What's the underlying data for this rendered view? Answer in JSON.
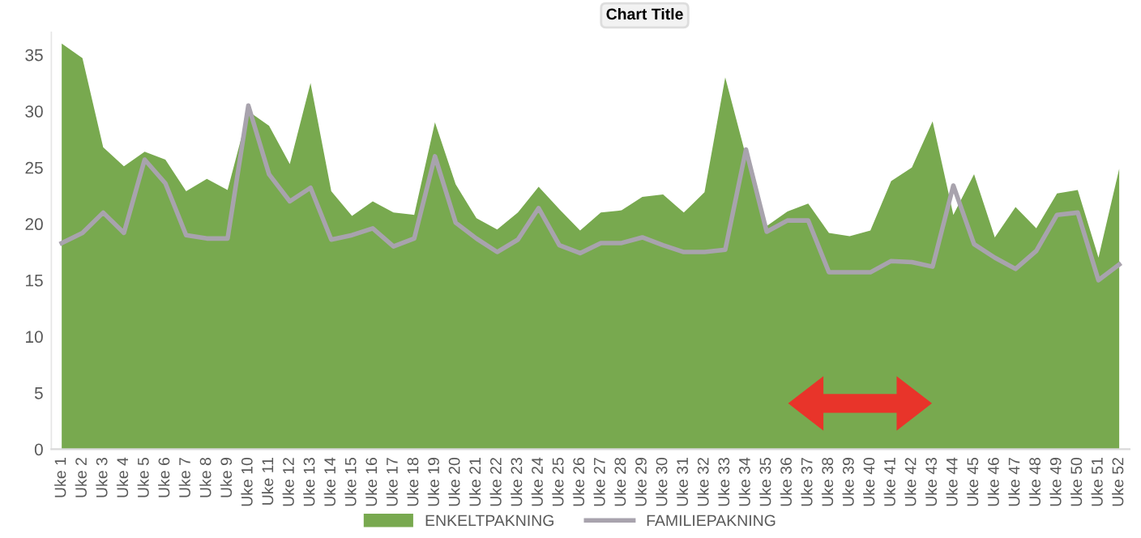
{
  "chart_data": {
    "type": "area",
    "title": "Chart Title",
    "categories": [
      "Uke 1",
      "Uke 2",
      "Uke 3",
      "Uke 4",
      "Uke 5",
      "Uke 6",
      "Uke 7",
      "Uke 8",
      "Uke 9",
      "Uke 10",
      "Uke 11",
      "Uke 12",
      "Uke 13",
      "Uke 14",
      "Uke 15",
      "Uke 16",
      "Uke 17",
      "Uke 18",
      "Uke 19",
      "Uke 20",
      "Uke 21",
      "Uke 22",
      "Uke 23",
      "Uke 24",
      "Uke 25",
      "Uke 26",
      "Uke 27",
      "Uke 28",
      "Uke 29",
      "Uke 30",
      "Uke 31",
      "Uke 32",
      "Uke 33",
      "Uke 34",
      "Uke 35",
      "Uke 36",
      "Uke 37",
      "Uke 38",
      "Uke 39",
      "Uke 40",
      "Uke 41",
      "Uke 42",
      "Uke 43",
      "Uke 44",
      "Uke 45",
      "Uke 46",
      "Uke 47",
      "Uke 48",
      "Uke 49",
      "Uke 50",
      "Uke 51",
      "Uke 52"
    ],
    "series": [
      {
        "name": "ENKELTPAKNING",
        "color": "#78a94f",
        "values": [
          36,
          34.7,
          26.8,
          25.1,
          26.4,
          25.7,
          22.9,
          24,
          23,
          30,
          28.7,
          25.3,
          32.5,
          22.9,
          20.7,
          22,
          21,
          20.8,
          29,
          23.5,
          20.5,
          19.5,
          21,
          23.3,
          21.3,
          19.4,
          21,
          21.2,
          22.4,
          22.6,
          21,
          22.8,
          33,
          26,
          19.8,
          21.1,
          21.8,
          19.2,
          18.9,
          19.4,
          23.8,
          25,
          29.1,
          20.8,
          24.4,
          18.8,
          21.5,
          19.6,
          22.7,
          23,
          17,
          24.9
        ]
      },
      {
        "name": "FAMILIEPAKNING",
        "type": "line",
        "color": "#a8a3ad",
        "values": [
          18.3,
          19.2,
          21,
          19.2,
          25.7,
          23.6,
          19,
          18.7,
          18.7,
          30.5,
          24.4,
          22,
          23.2,
          18.6,
          19,
          19.6,
          18,
          18.7,
          26,
          20.1,
          18.7,
          17.5,
          18.6,
          21.4,
          18.1,
          17.4,
          18.3,
          18.3,
          18.8,
          18.1,
          17.5,
          17.5,
          17.7,
          26.6,
          19.3,
          20.3,
          20.3,
          15.7,
          15.7,
          15.7,
          16.7,
          16.6,
          16.2,
          23.4,
          18.2,
          17,
          16,
          17.6,
          20.8,
          21,
          15,
          16.4
        ]
      }
    ],
    "ylim": [
      0,
      37
    ],
    "yticks": [
      0,
      5,
      10,
      15,
      20,
      25,
      30,
      35
    ],
    "grid": false,
    "legend": "bottom"
  }
}
